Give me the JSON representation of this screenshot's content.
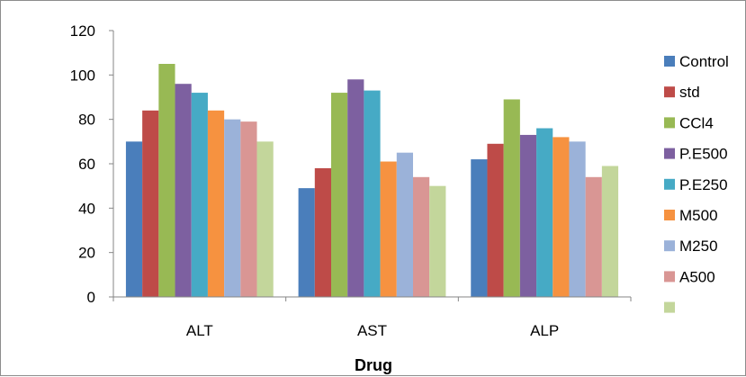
{
  "chart_data": {
    "type": "bar",
    "title": "",
    "xlabel": "Drug",
    "ylabel": "",
    "ylim": [
      0,
      120
    ],
    "yticks": [
      0,
      20,
      40,
      60,
      80,
      100,
      120
    ],
    "grid": false,
    "legend_position": "right",
    "categories": [
      "ALT",
      "AST",
      "ALP"
    ],
    "series": [
      {
        "name": "Control",
        "color": "#4a7ebb",
        "values": [
          70,
          49,
          62
        ]
      },
      {
        "name": "std",
        "color": "#be4b48",
        "values": [
          84,
          58,
          69
        ]
      },
      {
        "name": "CCl4",
        "color": "#98b954",
        "values": [
          105,
          92,
          89
        ]
      },
      {
        "name": "P.E500",
        "color": "#7d60a0",
        "values": [
          96,
          98,
          73
        ]
      },
      {
        "name": "P.E250",
        "color": "#46aac5",
        "values": [
          92,
          93,
          76
        ]
      },
      {
        "name": "M500",
        "color": "#f69240",
        "values": [
          84,
          61,
          72
        ]
      },
      {
        "name": "M250",
        "color": "#9bb2d9",
        "values": [
          80,
          65,
          70
        ]
      },
      {
        "name": "A500",
        "color": "#d99694",
        "values": [
          79,
          54,
          54
        ]
      },
      {
        "name": "",
        "color": "#c3d69b",
        "values": [
          70,
          50,
          59
        ]
      }
    ]
  }
}
